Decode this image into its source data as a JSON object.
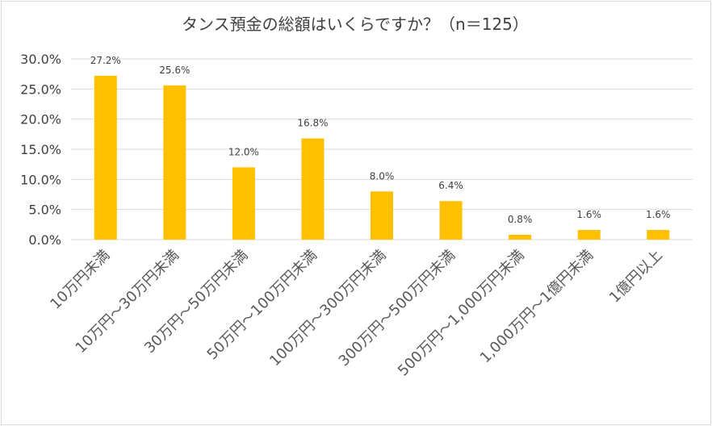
{
  "chart_data": {
    "type": "bar",
    "title": "タンス預金の総額はいくらですか？（n＝125）",
    "categories": [
      "10万円未満",
      "10万円～30万円未満",
      "30万円～50万円未満",
      "50万円～100万円未満",
      "100万円～300万円未満",
      "300万円～500万円未満",
      "500万円～1,000万円未満",
      "1,000万円～1億円未満",
      "1億円以上"
    ],
    "values": [
      27.2,
      25.6,
      12.0,
      16.8,
      8.0,
      6.4,
      0.8,
      1.6,
      1.6
    ],
    "data_labels": [
      "27.2%",
      "25.6%",
      "12.0%",
      "16.8%",
      "8.0%",
      "6.4%",
      "0.8%",
      "1.6%",
      "1.6%"
    ],
    "yticks": [
      "0.0%",
      "5.0%",
      "10.0%",
      "15.0%",
      "20.0%",
      "25.0%",
      "30.0%"
    ],
    "ylim": [
      0,
      30
    ],
    "grid": true,
    "xlabel": "",
    "ylabel": "",
    "colors": {
      "bar": "#FFC000",
      "grid": "#d9d9d9",
      "text": "#404040"
    }
  }
}
